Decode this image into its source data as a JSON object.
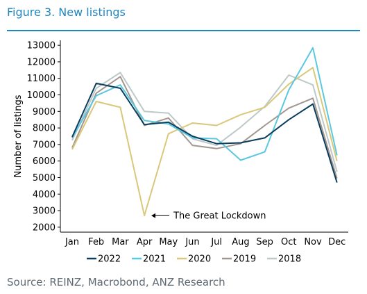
{
  "figure_title": "Figure 3. New listings",
  "source": "Source: REINZ, Macrobond, ANZ Research",
  "chart_data": {
    "type": "line",
    "title": "",
    "xlabel": "",
    "ylabel": "Number of listings",
    "categories": [
      "Jan",
      "Feb",
      "Mar",
      "Apr",
      "May",
      "Jun",
      "Jul",
      "Aug",
      "Sep",
      "Oct",
      "Nov",
      "Dec"
    ],
    "yticks": [
      2000,
      3000,
      4000,
      5000,
      6000,
      7000,
      8000,
      9000,
      10000,
      11000,
      12000,
      13000
    ],
    "ylim": [
      1700,
      13300
    ],
    "grid": false,
    "legend_position": "bottom",
    "series": [
      {
        "name": "2022",
        "color": "#0b3d5c",
        "values": [
          7450,
          10700,
          10400,
          8200,
          8350,
          7500,
          7050,
          7100,
          7400,
          8500,
          9450,
          4700
        ]
      },
      {
        "name": "2021",
        "color": "#5bc8df",
        "values": [
          7400,
          9950,
          10600,
          8450,
          8250,
          7400,
          7350,
          6050,
          6550,
          10300,
          12850,
          6350
        ]
      },
      {
        "name": "2020",
        "color": "#d9c77a",
        "values": [
          6700,
          9600,
          9250,
          2700,
          7650,
          8300,
          8150,
          8800,
          9250,
          10650,
          11650,
          6000
        ]
      },
      {
        "name": "2019",
        "color": "#a39690",
        "values": [
          6800,
          10100,
          11100,
          8150,
          8600,
          6950,
          6750,
          7050,
          8150,
          9200,
          9800,
          4950
        ]
      },
      {
        "name": "2018",
        "color": "#bdc8c9",
        "values": [
          7250,
          10400,
          11350,
          9000,
          8900,
          7350,
          6950,
          8050,
          9300,
          11200,
          10600,
          5350
        ]
      }
    ],
    "annotations": [
      {
        "text": "The Great Lockdown",
        "x": "Apr",
        "y": 2700
      }
    ]
  }
}
